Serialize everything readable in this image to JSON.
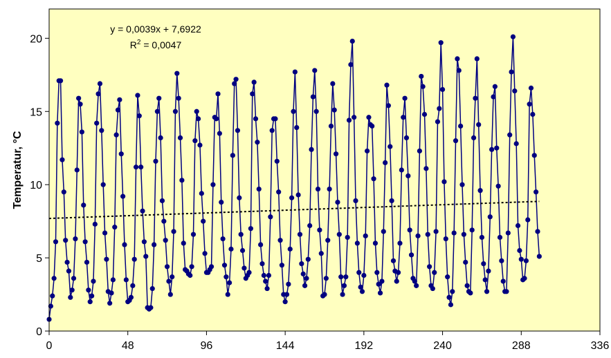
{
  "chart_data": {
    "type": "line",
    "title": "",
    "xlabel": "",
    "ylabel": "Temperatur, °C",
    "xlim": [
      0,
      336
    ],
    "ylim": [
      0,
      22
    ],
    "x_ticks": [
      0,
      48,
      96,
      144,
      192,
      240,
      288,
      336
    ],
    "y_ticks": [
      0,
      5,
      10,
      15,
      20
    ],
    "x_tick_labels": [
      "0",
      "48",
      "96",
      "144",
      "192",
      "240",
      "288",
      "336"
    ],
    "y_tick_labels": [
      "0",
      "5",
      "10",
      "15",
      "20"
    ],
    "grid": false,
    "legend": "none",
    "colors": {
      "plot_background": "#ffffc0",
      "series": "#000080",
      "trendline": "#000000",
      "axes": "#000000"
    },
    "series": [
      {
        "x_start": 0,
        "x_step": 1,
        "values": [
          0.8,
          1.7,
          2.4,
          3.6,
          6.1,
          14.2,
          17.1,
          17.1,
          11.7,
          9.5,
          6.2,
          4.7,
          4.1,
          2.3,
          2.8,
          3.6,
          6.3,
          11.0,
          15.9,
          15.5,
          13.6,
          8.6,
          6.1,
          4.7,
          2.8,
          2.0,
          2.4,
          3.4,
          7.3,
          14.2,
          16.2,
          16.9,
          13.7,
          10.0,
          6.7,
          4.9,
          2.7,
          1.9,
          2.6,
          3.5,
          7.1,
          13.4,
          15.1,
          15.8,
          12.1,
          9.2,
          5.9,
          3.5,
          2.0,
          2.1,
          2.3,
          3.1,
          4.9,
          11.2,
          16.1,
          14.7,
          11.2,
          8.2,
          6.1,
          5.1,
          1.6,
          1.5,
          1.6,
          2.9,
          5.9,
          11.6,
          15.0,
          15.9,
          13.2,
          8.9,
          7.5,
          6.2,
          4.4,
          3.4,
          2.5,
          3.7,
          6.8,
          15.0,
          17.6,
          15.9,
          13.2,
          10.3,
          6.0,
          4.2,
          4.1,
          3.9,
          3.8,
          4.4,
          6.6,
          13.0,
          15.0,
          14.5,
          12.7,
          9.4,
          7.5,
          5.3,
          4.0,
          4.0,
          4.2,
          4.4,
          10.0,
          14.6,
          14.5,
          16.2,
          13.5,
          8.8,
          6.3,
          4.5,
          3.7,
          2.5,
          3.3,
          5.6,
          12.0,
          16.9,
          17.2,
          13.7,
          9.1,
          6.6,
          5.5,
          4.3,
          3.6,
          3.8,
          4.0,
          7.0,
          16.2,
          17.0,
          14.5,
          12.9,
          9.7,
          5.9,
          4.6,
          3.8,
          3.4,
          2.9,
          3.8,
          7.8,
          13.7,
          14.5,
          14.5,
          11.6,
          9.5,
          6.2,
          4.5,
          2.5,
          2.0,
          2.5,
          3.2,
          5.6,
          9.1,
          15.0,
          17.7,
          13.9,
          9.3,
          6.6,
          4.6,
          3.9,
          3.1,
          3.6,
          4.9,
          7.2,
          12.4,
          16.0,
          17.8,
          15.0,
          9.7,
          6.9,
          5.3,
          2.4,
          2.5,
          3.6,
          6.2,
          9.7,
          14.0,
          16.9,
          15.1,
          12.1,
          8.8,
          6.6,
          3.7,
          2.5,
          3.1,
          3.7,
          6.4,
          14.4,
          18.2,
          19.8,
          14.6,
          8.9,
          6.0,
          4.0,
          3.0,
          2.7,
          3.8,
          6.5,
          12.3,
          14.6,
          14.1,
          14.0,
          10.4,
          6.0,
          4.0,
          3.2,
          2.6,
          3.4,
          6.8,
          11.5,
          16.8,
          15.4,
          12.6,
          8.9,
          4.8,
          4.1,
          3.4,
          4.0,
          6.0,
          11.0,
          14.6,
          15.9,
          13.2,
          10.6,
          6.9,
          5.2,
          3.6,
          3.4,
          3.1,
          6.5,
          12.3,
          17.4,
          16.7,
          14.8,
          11.1,
          6.6,
          4.4,
          3.1,
          2.9,
          4.0,
          6.8,
          14.3,
          15.2,
          19.7,
          16.5,
          10.2,
          6.3,
          3.7,
          2.3,
          1.8,
          2.7,
          6.7,
          13.0,
          18.6,
          17.8,
          14.0,
          10.0,
          6.6,
          4.7,
          3.1,
          2.7,
          2.6,
          6.9,
          13.2,
          15.9,
          18.6,
          14.1,
          9.6,
          6.4,
          4.6,
          3.5,
          2.7,
          4.1,
          7.8,
          12.4,
          16.0,
          16.7,
          12.5,
          9.9,
          6.4,
          4.8,
          3.4,
          2.7,
          2.7,
          6.7,
          13.4,
          17.7,
          20.1,
          16.4,
          12.8,
          7.2,
          5.5,
          4.9,
          3.5,
          3.6,
          4.8,
          7.6,
          15.5,
          16.6,
          14.8,
          12.0,
          9.5,
          6.8,
          5.1
        ]
      }
    ],
    "trendline": {
      "type": "linear",
      "slope": 0.0039,
      "intercept": 7.6922,
      "equation": "y = 0,0039x + 7,6922",
      "r2_prefix": "R",
      "r2_sup": "2",
      "r2_value": " = 0,0047"
    }
  }
}
